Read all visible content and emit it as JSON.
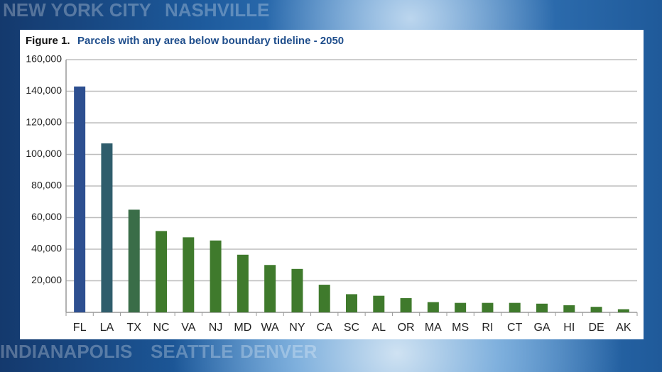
{
  "background": {
    "labels": [
      "NEW YORK CITY",
      "NASHVILLE",
      "INDIANAPOLIS",
      "SEATTLE",
      "DENVER"
    ]
  },
  "chart_data": {
    "type": "bar",
    "figure_label": "Figure 1.",
    "title": "Parcels with any area below boundary tideline - 2050",
    "categories": [
      "FL",
      "LA",
      "TX",
      "NC",
      "VA",
      "NJ",
      "MD",
      "WA",
      "NY",
      "CA",
      "SC",
      "AL",
      "OR",
      "MA",
      "MS",
      "RI",
      "CT",
      "GA",
      "HI",
      "DE",
      "AK"
    ],
    "values": [
      143000,
      107000,
      65000,
      51500,
      47500,
      45500,
      36500,
      30000,
      27500,
      17500,
      11500,
      10500,
      9000,
      6500,
      6000,
      6000,
      6000,
      5500,
      4500,
      3500,
      2000
    ],
    "colors": [
      "#2d4f90",
      "#2f5d6c",
      "#3a6d48",
      "#3f7a2c",
      "#3f7a2c",
      "#3f7a2c",
      "#3f7a2c",
      "#3f7a2c",
      "#3f7a2c",
      "#3f7a2c",
      "#3f7a2c",
      "#3f7a2c",
      "#3f7a2c",
      "#3f7a2c",
      "#3f7a2c",
      "#3f7a2c",
      "#3f7a2c",
      "#3f7a2c",
      "#3f7a2c",
      "#3f7a2c",
      "#3f7a2c"
    ],
    "ylim": [
      0,
      160000
    ],
    "yticks": [
      {
        "value": 20000,
        "label": "20,000"
      },
      {
        "value": 40000,
        "label": "40,000"
      },
      {
        "value": 60000,
        "label": "60,000"
      },
      {
        "value": 80000,
        "label": "80,000"
      },
      {
        "value": 100000,
        "label": "100,000"
      },
      {
        "value": 120000,
        "label": "120,000"
      },
      {
        "value": 140000,
        "label": "140,000"
      },
      {
        "value": 160000,
        "label": "160,000"
      }
    ],
    "grid": true
  }
}
